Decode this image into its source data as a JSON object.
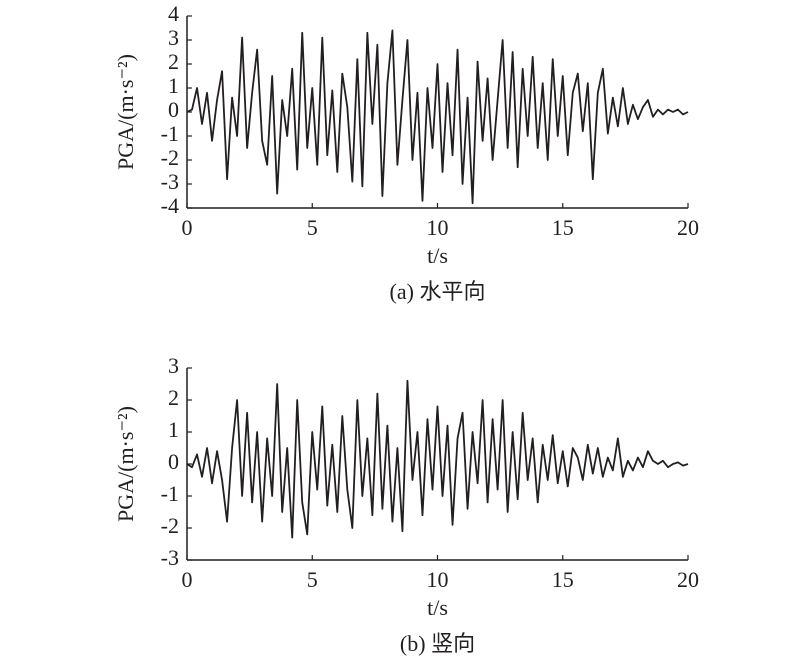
{
  "chart_data": [
    {
      "type": "line",
      "xlabel": "t/s",
      "ylabel": "PGA/(m·s⁻²)",
      "caption": "(a) 水平向",
      "xlim": [
        0,
        20
      ],
      "xticks": [
        0,
        5,
        10,
        15,
        20
      ],
      "ylim": [
        -4,
        4
      ],
      "yticks": [
        -4,
        -3,
        -2,
        -1,
        0,
        1,
        2,
        3,
        4
      ],
      "color": "#231f20",
      "x": [
        0,
        0.2,
        0.4,
        0.6,
        0.8,
        1,
        1.2,
        1.4,
        1.6,
        1.8,
        2,
        2.2,
        2.4,
        2.6,
        2.8,
        3,
        3.2,
        3.4,
        3.6,
        3.8,
        4,
        4.2,
        4.4,
        4.6,
        4.8,
        5,
        5.2,
        5.4,
        5.6,
        5.8,
        6,
        6.2,
        6.4,
        6.6,
        6.8,
        7,
        7.2,
        7.4,
        7.6,
        7.8,
        8,
        8.2,
        8.4,
        8.6,
        8.8,
        9,
        9.2,
        9.4,
        9.6,
        9.8,
        10,
        10.2,
        10.4,
        10.6,
        10.8,
        11,
        11.2,
        11.4,
        11.6,
        11.8,
        12,
        12.2,
        12.4,
        12.6,
        12.8,
        13,
        13.2,
        13.4,
        13.6,
        13.8,
        14,
        14.2,
        14.4,
        14.6,
        14.8,
        15,
        15.2,
        15.4,
        15.6,
        15.8,
        16,
        16.2,
        16.4,
        16.6,
        16.8,
        17,
        17.2,
        17.4,
        17.6,
        17.8,
        18,
        18.2,
        18.4,
        18.6,
        18.8,
        19,
        19.2,
        19.4,
        19.6,
        19.8,
        20
      ],
      "values": [
        0,
        0.1,
        1.0,
        -0.5,
        0.8,
        -1.2,
        0.5,
        1.7,
        -2.8,
        0.6,
        -1.0,
        3.1,
        -1.5,
        0.8,
        2.6,
        -1.2,
        -2.2,
        1.5,
        -3.4,
        0.5,
        -1.0,
        1.8,
        -2.4,
        3.3,
        -1.5,
        1.0,
        -2.2,
        3.1,
        -1.8,
        0.9,
        -2.5,
        1.6,
        0.2,
        -2.9,
        2.2,
        -3.1,
        3.3,
        -0.5,
        2.8,
        -3.5,
        1.2,
        3.4,
        -2.2,
        0.5,
        3.0,
        -2.0,
        0.8,
        -3.7,
        1.0,
        -1.5,
        2.0,
        -2.5,
        1.2,
        -1.8,
        2.6,
        -3.0,
        0.6,
        -3.8,
        2.1,
        -1.2,
        1.4,
        -2.0,
        0.5,
        3.0,
        -1.5,
        2.5,
        -2.3,
        1.8,
        -1.0,
        2.3,
        -1.5,
        1.2,
        -2.0,
        2.2,
        -1.0,
        1.5,
        -1.8,
        0.8,
        1.6,
        -0.8,
        1.2,
        -2.8,
        0.8,
        1.8,
        -0.9,
        0.6,
        -0.6,
        1.0,
        -0.5,
        0.3,
        -0.3,
        0.2,
        0.5,
        -0.2,
        0.1,
        -0.1,
        0.1,
        0,
        0.1,
        -0.1,
        0
      ]
    },
    {
      "type": "line",
      "xlabel": "t/s",
      "ylabel": "PGA/(m·s⁻²)",
      "caption": "(b) 竖向",
      "xlim": [
        0,
        20
      ],
      "xticks": [
        0,
        5,
        10,
        15,
        20
      ],
      "ylim": [
        -3,
        3
      ],
      "yticks": [
        -3,
        -2,
        -1,
        0,
        1,
        2,
        3
      ],
      "color": "#231f20",
      "x": [
        0,
        0.2,
        0.4,
        0.6,
        0.8,
        1,
        1.2,
        1.4,
        1.6,
        1.8,
        2,
        2.2,
        2.4,
        2.6,
        2.8,
        3,
        3.2,
        3.4,
        3.6,
        3.8,
        4,
        4.2,
        4.4,
        4.6,
        4.8,
        5,
        5.2,
        5.4,
        5.6,
        5.8,
        6,
        6.2,
        6.4,
        6.6,
        6.8,
        7,
        7.2,
        7.4,
        7.6,
        7.8,
        8,
        8.2,
        8.4,
        8.6,
        8.8,
        9,
        9.2,
        9.4,
        9.6,
        9.8,
        10,
        10.2,
        10.4,
        10.6,
        10.8,
        11,
        11.2,
        11.4,
        11.6,
        11.8,
        12,
        12.2,
        12.4,
        12.6,
        12.8,
        13,
        13.2,
        13.4,
        13.6,
        13.8,
        14,
        14.2,
        14.4,
        14.6,
        14.8,
        15,
        15.2,
        15.4,
        15.6,
        15.8,
        16,
        16.2,
        16.4,
        16.6,
        16.8,
        17,
        17.2,
        17.4,
        17.6,
        17.8,
        18,
        18.2,
        18.4,
        18.6,
        18.8,
        19,
        19.2,
        19.4,
        19.6,
        19.8,
        20
      ],
      "values": [
        0,
        -0.1,
        0.3,
        -0.4,
        0.5,
        -0.6,
        0.4,
        -0.5,
        -1.8,
        0.5,
        2.0,
        -1.0,
        1.6,
        -1.2,
        1.0,
        -1.8,
        0.8,
        -1.0,
        2.5,
        -1.5,
        0.5,
        -2.3,
        2.0,
        -1.2,
        -2.2,
        1.0,
        -0.8,
        1.8,
        -1.3,
        0.6,
        -1.5,
        1.5,
        -0.8,
        -2.0,
        2.0,
        -1.0,
        0.8,
        -1.6,
        2.2,
        -1.4,
        1.2,
        -1.8,
        0.5,
        -2.1,
        2.6,
        -0.5,
        1.0,
        -1.6,
        1.4,
        -0.8,
        1.8,
        -1.0,
        1.2,
        -1.9,
        0.8,
        1.6,
        -1.4,
        1.0,
        -0.6,
        2.0,
        -1.2,
        1.4,
        -0.8,
        2.0,
        -1.5,
        1.0,
        -1.1,
        1.6,
        -0.5,
        0.8,
        -1.2,
        0.6,
        -0.5,
        0.9,
        -0.6,
        0.4,
        -0.7,
        0.5,
        0.2,
        -0.5,
        0.6,
        -0.3,
        0.5,
        -0.4,
        0.2,
        -0.2,
        0.8,
        -0.4,
        0.1,
        -0.2,
        0.2,
        -0.1,
        0.4,
        0.1,
        0,
        0.1,
        -0.1,
        0,
        0.05,
        -0.05,
        0
      ]
    }
  ]
}
